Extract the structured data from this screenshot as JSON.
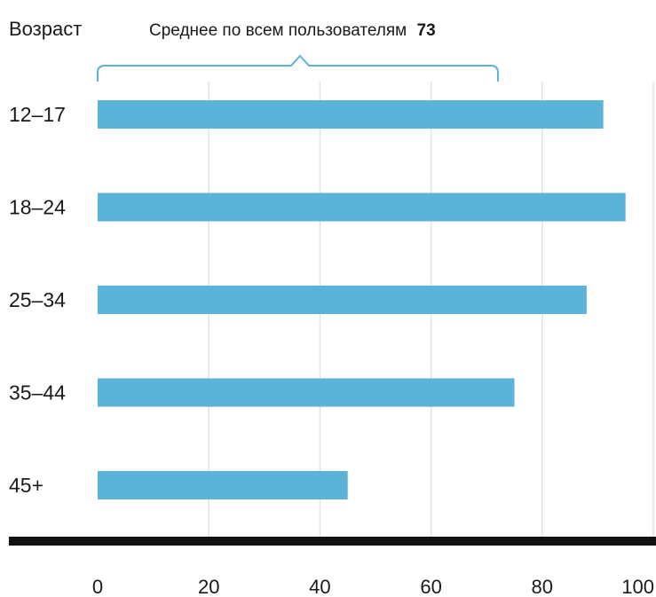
{
  "chart_data": {
    "type": "bar",
    "orientation": "horizontal",
    "y_axis_title": "Возраст",
    "categories": [
      "12–17",
      "18–24",
      "25–34",
      "35–44",
      "45+"
    ],
    "values": [
      91,
      95,
      88,
      75,
      45
    ],
    "xlim": [
      0,
      100
    ],
    "xticks": [
      0,
      20,
      40,
      60,
      80,
      100
    ],
    "xtick_labels": [
      "0",
      "20",
      "40",
      "60",
      "80",
      "100"
    ],
    "grid": true,
    "bar_color": "#5bb3da",
    "grid_color": "#e3e3e3",
    "baseline_color": "#111111",
    "average": {
      "label": "Среднее по всем пользователям",
      "value_text": "73",
      "value": 73,
      "bracket_color": "#5bb3da"
    }
  }
}
